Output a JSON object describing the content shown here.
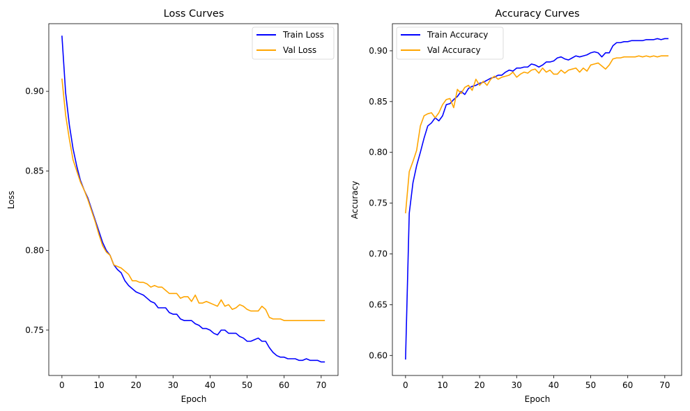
{
  "chart_data": [
    {
      "type": "line",
      "title": "Loss Curves",
      "xlabel": "Epoch",
      "ylabel": "Loss",
      "xlim": [
        -3.55,
        74.55
      ],
      "ylim": [
        0.7215,
        0.9425
      ],
      "xticks": [
        0,
        10,
        20,
        30,
        40,
        50,
        60,
        70
      ],
      "yticks": [
        0.75,
        0.8,
        0.85,
        0.9
      ],
      "ytick_labels": [
        "0.75",
        "0.80",
        "0.85",
        "0.90"
      ],
      "grid": false,
      "legend": "upper right",
      "colors": {
        "Train Loss": "#0000ff",
        "Val Loss": "#ffa500"
      },
      "x": [
        0,
        1,
        2,
        3,
        4,
        5,
        6,
        7,
        8,
        9,
        10,
        11,
        12,
        13,
        14,
        15,
        16,
        17,
        18,
        19,
        20,
        21,
        22,
        23,
        24,
        25,
        26,
        27,
        28,
        29,
        30,
        31,
        32,
        33,
        34,
        35,
        36,
        37,
        38,
        39,
        40,
        41,
        42,
        43,
        44,
        45,
        46,
        47,
        48,
        49,
        50,
        51,
        52,
        53,
        54,
        55,
        56,
        57,
        58,
        59,
        60,
        61,
        62,
        63,
        64,
        65,
        66,
        67,
        68,
        69,
        70,
        71
      ],
      "series": [
        {
          "name": "Train Loss",
          "values": [
            0.935,
            0.899,
            0.879,
            0.864,
            0.853,
            0.844,
            0.838,
            0.833,
            0.826,
            0.819,
            0.812,
            0.805,
            0.8,
            0.797,
            0.791,
            0.788,
            0.786,
            0.781,
            0.778,
            0.776,
            0.774,
            0.773,
            0.772,
            0.77,
            0.768,
            0.767,
            0.764,
            0.764,
            0.764,
            0.761,
            0.76,
            0.76,
            0.757,
            0.756,
            0.756,
            0.756,
            0.754,
            0.753,
            0.751,
            0.751,
            0.75,
            0.748,
            0.747,
            0.75,
            0.75,
            0.748,
            0.748,
            0.748,
            0.746,
            0.745,
            0.743,
            0.743,
            0.744,
            0.745,
            0.743,
            0.743,
            0.739,
            0.736,
            0.734,
            0.733,
            0.733,
            0.732,
            0.732,
            0.732,
            0.731,
            0.731,
            0.732,
            0.731,
            0.731,
            0.731,
            0.73,
            0.73
          ]
        },
        {
          "name": "Val Loss",
          "values": [
            0.908,
            0.885,
            0.87,
            0.857,
            0.85,
            0.843,
            0.838,
            0.832,
            0.825,
            0.818,
            0.81,
            0.803,
            0.799,
            0.797,
            0.791,
            0.79,
            0.789,
            0.787,
            0.785,
            0.781,
            0.781,
            0.78,
            0.78,
            0.779,
            0.777,
            0.778,
            0.777,
            0.777,
            0.775,
            0.773,
            0.773,
            0.773,
            0.77,
            0.771,
            0.771,
            0.768,
            0.772,
            0.767,
            0.767,
            0.768,
            0.767,
            0.766,
            0.765,
            0.769,
            0.765,
            0.766,
            0.763,
            0.764,
            0.766,
            0.765,
            0.763,
            0.762,
            0.762,
            0.762,
            0.765,
            0.763,
            0.758,
            0.757,
            0.757,
            0.757,
            0.756,
            0.756,
            0.756,
            0.756,
            0.756,
            0.756,
            0.756,
            0.756,
            0.756,
            0.756,
            0.756,
            0.756
          ]
        }
      ]
    },
    {
      "type": "line",
      "title": "Accuracy Curves",
      "xlabel": "Epoch",
      "ylabel": "Accuracy",
      "xlim": [
        -3.55,
        74.55
      ],
      "ylim": [
        0.5803,
        0.9267
      ],
      "xticks": [
        0,
        10,
        20,
        30,
        40,
        50,
        60,
        70
      ],
      "yticks": [
        0.6,
        0.65,
        0.7,
        0.75,
        0.8,
        0.85,
        0.9
      ],
      "ytick_labels": [
        "0.60",
        "0.65",
        "0.70",
        "0.75",
        "0.80",
        "0.85",
        "0.90"
      ],
      "grid": false,
      "legend": "upper left",
      "colors": {
        "Train Accuracy": "#0000ff",
        "Val Accuracy": "#ffa500"
      },
      "x": [
        0,
        1,
        2,
        3,
        4,
        5,
        6,
        7,
        8,
        9,
        10,
        11,
        12,
        13,
        14,
        15,
        16,
        17,
        18,
        19,
        20,
        21,
        22,
        23,
        24,
        25,
        26,
        27,
        28,
        29,
        30,
        31,
        32,
        33,
        34,
        35,
        36,
        37,
        38,
        39,
        40,
        41,
        42,
        43,
        44,
        45,
        46,
        47,
        48,
        49,
        50,
        51,
        52,
        53,
        54,
        55,
        56,
        57,
        58,
        59,
        60,
        61,
        62,
        63,
        64,
        65,
        66,
        67,
        68,
        69,
        70,
        71
      ],
      "series": [
        {
          "name": "Train Accuracy",
          "values": [
            0.596,
            0.74,
            0.77,
            0.787,
            0.8,
            0.814,
            0.826,
            0.829,
            0.834,
            0.831,
            0.836,
            0.847,
            0.848,
            0.852,
            0.855,
            0.86,
            0.857,
            0.863,
            0.865,
            0.866,
            0.868,
            0.869,
            0.871,
            0.873,
            0.874,
            0.876,
            0.876,
            0.879,
            0.881,
            0.88,
            0.883,
            0.883,
            0.884,
            0.884,
            0.887,
            0.886,
            0.884,
            0.886,
            0.889,
            0.889,
            0.89,
            0.893,
            0.894,
            0.892,
            0.891,
            0.893,
            0.895,
            0.894,
            0.895,
            0.896,
            0.898,
            0.899,
            0.898,
            0.894,
            0.898,
            0.898,
            0.905,
            0.908,
            0.908,
            0.909,
            0.909,
            0.91,
            0.91,
            0.91,
            0.91,
            0.911,
            0.911,
            0.911,
            0.912,
            0.911,
            0.912,
            0.912
          ]
        },
        {
          "name": "Val Accuracy",
          "values": [
            0.74,
            0.781,
            0.791,
            0.802,
            0.826,
            0.836,
            0.838,
            0.839,
            0.834,
            0.839,
            0.847,
            0.852,
            0.853,
            0.844,
            0.862,
            0.858,
            0.864,
            0.866,
            0.861,
            0.872,
            0.866,
            0.87,
            0.866,
            0.872,
            0.875,
            0.872,
            0.874,
            0.875,
            0.876,
            0.879,
            0.874,
            0.877,
            0.879,
            0.878,
            0.881,
            0.882,
            0.878,
            0.883,
            0.879,
            0.881,
            0.877,
            0.877,
            0.881,
            0.878,
            0.881,
            0.882,
            0.883,
            0.879,
            0.883,
            0.88,
            0.886,
            0.887,
            0.888,
            0.885,
            0.882,
            0.886,
            0.892,
            0.893,
            0.893,
            0.894,
            0.894,
            0.894,
            0.894,
            0.895,
            0.894,
            0.895,
            0.894,
            0.895,
            0.894,
            0.895,
            0.895,
            0.895
          ]
        }
      ]
    }
  ]
}
